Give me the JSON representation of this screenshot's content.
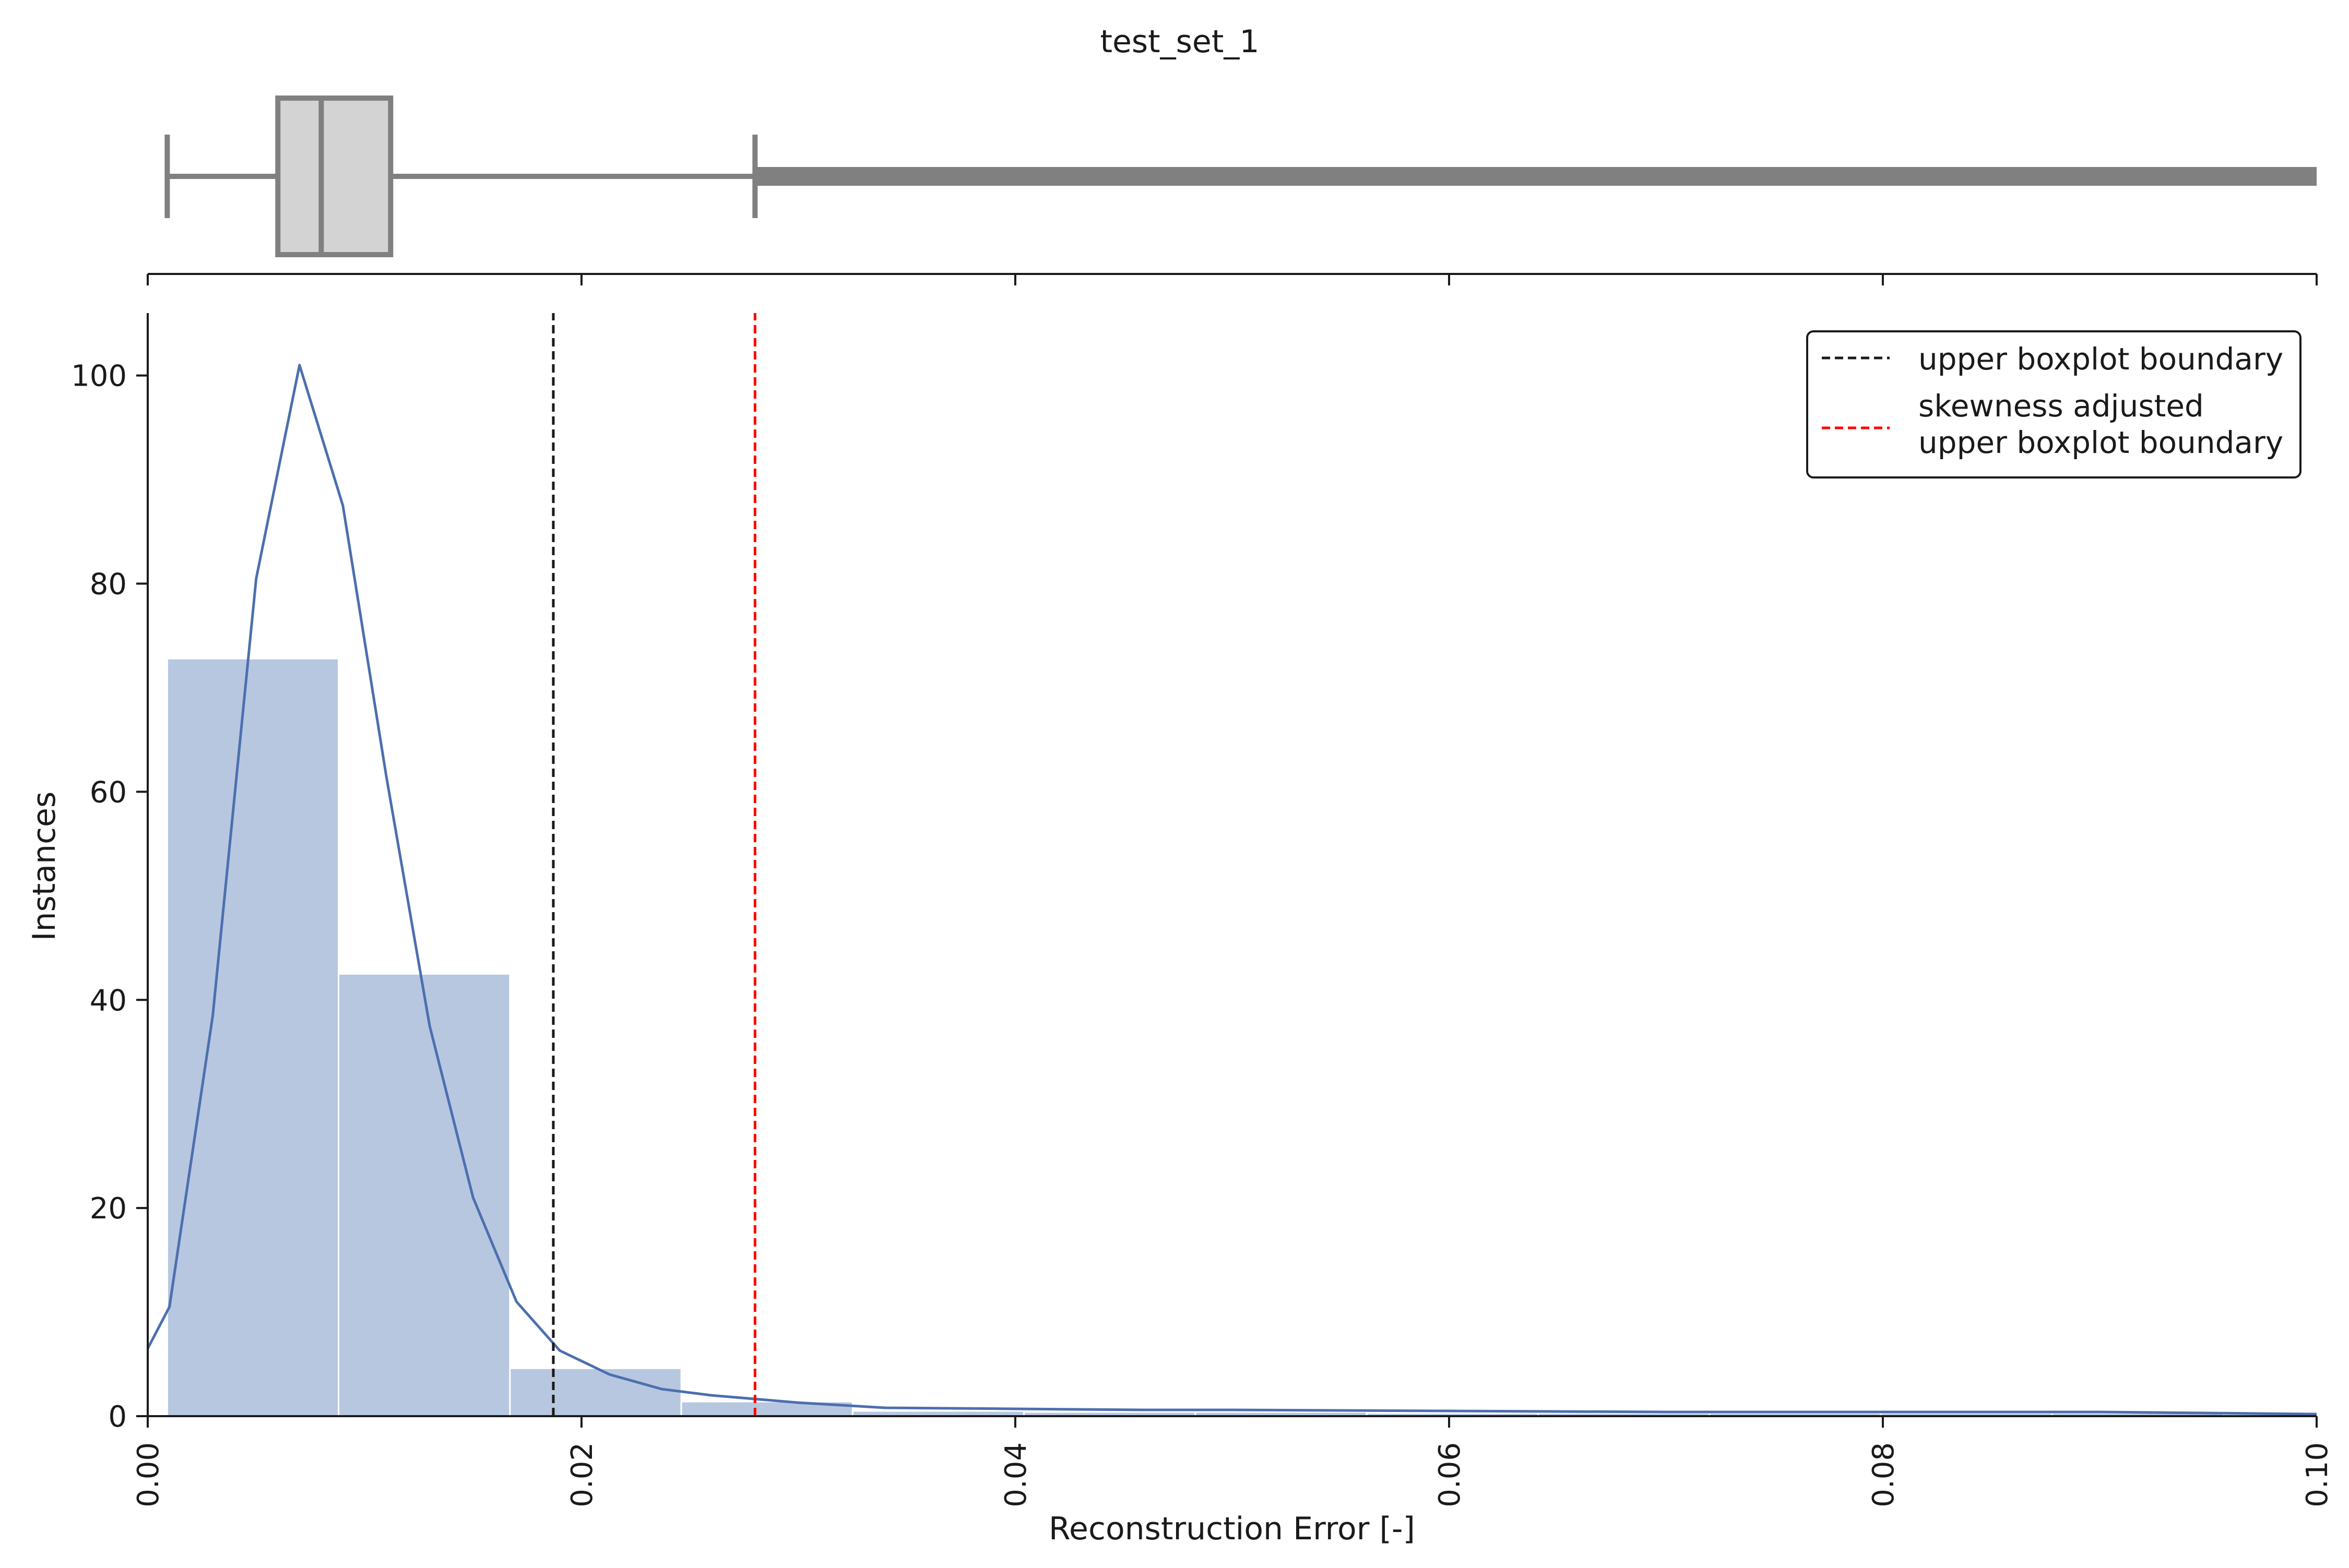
{
  "chart_data": {
    "type": "histogram",
    "title": "test_set_1",
    "xlabel": "Reconstruction Error [-]",
    "ylabel": "Instances",
    "xlim": [
      0.0,
      0.1
    ],
    "ylim": [
      0,
      106
    ],
    "x_ticks": [
      "0.00",
      "0.02",
      "0.04",
      "0.06",
      "0.08",
      "0.10"
    ],
    "y_ticks": [
      "0",
      "20",
      "40",
      "60",
      "80",
      "100"
    ],
    "grid": false,
    "legend_position": "top-right",
    "colors": {
      "bars": "#b7c7e0",
      "kde": "#4c6fae",
      "box_fill": "#d3d3d3",
      "box_edge": "#808080",
      "upper_boundary": "#1a1a1a",
      "skew_boundary": "#ff0000"
    },
    "histogram": {
      "bins": [
        {
          "start": 0.0009,
          "end": 0.0088,
          "count": 72.8
        },
        {
          "start": 0.0088,
          "end": 0.0167,
          "count": 42.5
        },
        {
          "start": 0.0167,
          "end": 0.0246,
          "count": 4.6
        },
        {
          "start": 0.0246,
          "end": 0.0325,
          "count": 1.4
        },
        {
          "start": 0.0325,
          "end": 0.0404,
          "count": 0.5
        },
        {
          "start": 0.0404,
          "end": 0.0483,
          "count": 0.4
        },
        {
          "start": 0.0483,
          "end": 0.0562,
          "count": 0.4
        },
        {
          "start": 0.0562,
          "end": 0.0641,
          "count": 0.3
        },
        {
          "start": 0.0641,
          "end": 0.072,
          "count": 0.3
        },
        {
          "start": 0.072,
          "end": 0.0799,
          "count": 0.3
        },
        {
          "start": 0.0799,
          "end": 0.0878,
          "count": 0.3
        },
        {
          "start": 0.0878,
          "end": 0.0957,
          "count": 0.3
        },
        {
          "start": 0.0957,
          "end": 0.1,
          "count": 0.2
        }
      ]
    },
    "kde": {
      "x": [
        0.0,
        0.001,
        0.003,
        0.005,
        0.007,
        0.009,
        0.011,
        0.013,
        0.015,
        0.017,
        0.019,
        0.0213,
        0.0237,
        0.026,
        0.03,
        0.034,
        0.04,
        0.046,
        0.05,
        0.06,
        0.07,
        0.08,
        0.09,
        0.1
      ],
      "y": [
        6.5,
        10.5,
        38.5,
        80.5,
        101.0,
        87.5,
        61.5,
        37.5,
        21.0,
        11.0,
        6.3,
        4.0,
        2.6,
        2.0,
        1.3,
        0.8,
        0.7,
        0.6,
        0.6,
        0.5,
        0.4,
        0.4,
        0.4,
        0.2
      ]
    },
    "boxplot": {
      "whisker_low": 0.0009,
      "q1": 0.006,
      "median": 0.008,
      "q3": 0.0112,
      "whisker_high": 0.028,
      "outliers_from": 0.028,
      "outliers_to": 0.1
    },
    "vlines": [
      {
        "name": "upper boxplot boundary",
        "x": 0.0187,
        "color": "#1a1a1a",
        "style": "dashed"
      },
      {
        "name": "skewness adjusted upper boxplot boundary",
        "x": 0.028,
        "color": "#ff0000",
        "style": "dashed"
      }
    ],
    "legend": [
      {
        "lines": [
          "upper boxplot boundary"
        ],
        "color": "#1a1a1a"
      },
      {
        "lines": [
          "skewness adjusted",
          "upper boxplot boundary"
        ],
        "color": "#ff0000"
      }
    ]
  }
}
